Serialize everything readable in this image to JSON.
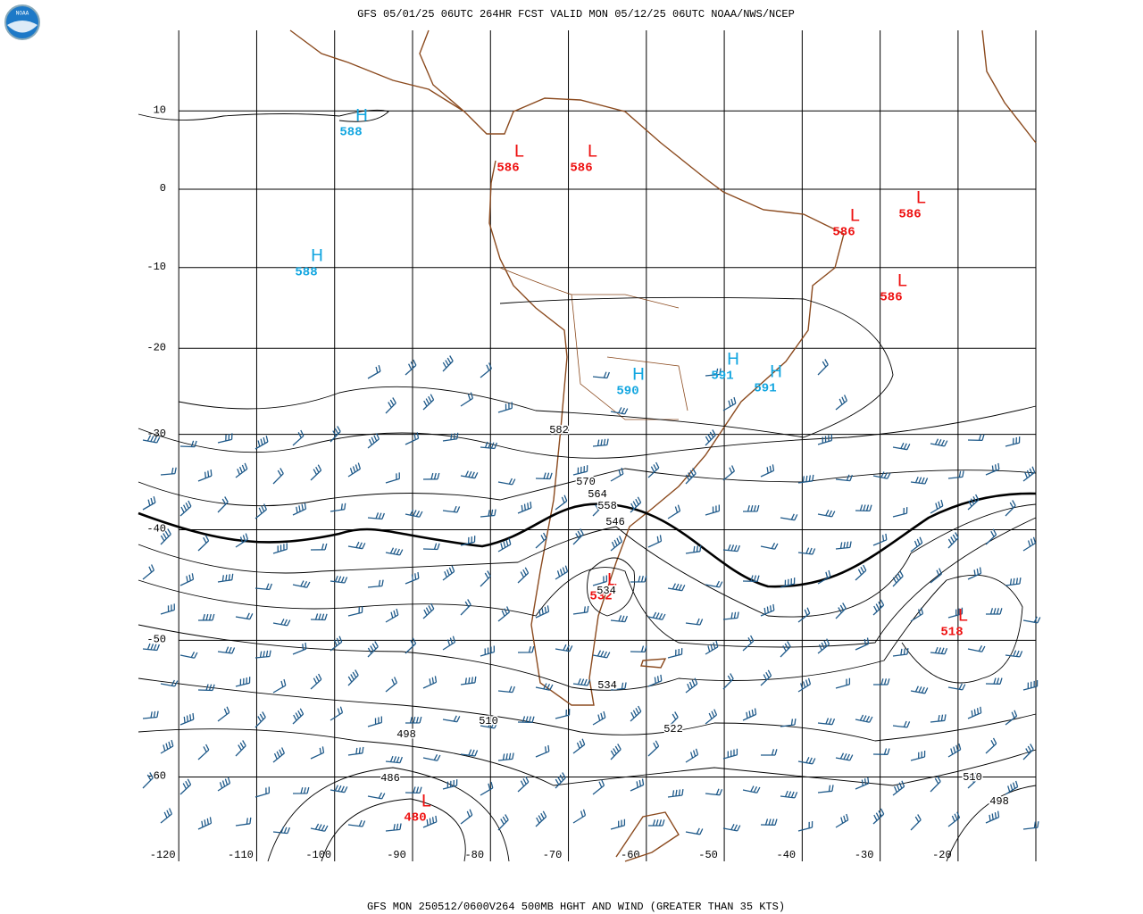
{
  "header": {
    "logo_text": "NOAA",
    "title": "GFS 05/01/25 06UTC 264HR FCST VALID MON 05/12/25 06UTC NOAA/NWS/NCEP"
  },
  "footer": {
    "caption": "GFS MON 250512/0600V264 500MB HGHT AND WIND (GREATER THAN 35 KTS)"
  },
  "map": {
    "longitudes": [
      -120,
      -110,
      -100,
      -90,
      -80,
      -70,
      -60,
      -50,
      -40,
      -30,
      -20
    ],
    "latitudes": [
      10,
      0,
      -10,
      -20,
      -30,
      -40,
      -50,
      -60
    ],
    "centers": [
      {
        "type": "H",
        "value": 588
      },
      {
        "type": "L",
        "value": 586
      },
      {
        "type": "L",
        "value": 586
      },
      {
        "type": "L",
        "value": 586
      },
      {
        "type": "L",
        "value": 586
      },
      {
        "type": "L",
        "value": 586
      },
      {
        "type": "H",
        "value": 588
      },
      {
        "type": "H",
        "value": 590
      },
      {
        "type": "H",
        "value": 591
      },
      {
        "type": "H",
        "value": 591
      },
      {
        "type": "L",
        "value": 532
      },
      {
        "type": "L",
        "value": 518
      },
      {
        "type": "L",
        "value": 480
      }
    ],
    "contour_labels": [
      582,
      570,
      564,
      558,
      546,
      534,
      534,
      522,
      510,
      498,
      486,
      510,
      498
    ]
  }
}
